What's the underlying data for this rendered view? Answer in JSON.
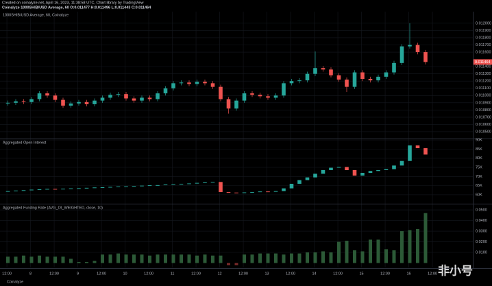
{
  "header": {
    "created": "Created on coinalyze.net, April 16, 2023, 11:38:58 UTC, Chart library by TradingView",
    "symbol_line": "Coinalyze 1000SHIB/USD Average, 60  O:0.011477 H:0.011496 L:0.011443 C:0.011464",
    "brand": "Coinalyze",
    "watermark": "非小号"
  },
  "chart_data": [
    {
      "type": "candlestick",
      "title": "1000SHIB/USD Average, 60, Coinalyze",
      "x": [
        4,
        8,
        12,
        16,
        20,
        24,
        28,
        32,
        36,
        40,
        44,
        48,
        52,
        56,
        60,
        64,
        68,
        72,
        76,
        80,
        84,
        88,
        92,
        96,
        100,
        104,
        108,
        112,
        116,
        120,
        124,
        128,
        132,
        136,
        140,
        144,
        148,
        152,
        156,
        160,
        164,
        168,
        172,
        176,
        180,
        184,
        188,
        192,
        196,
        200,
        204,
        208,
        212,
        216
      ],
      "open": [
        0.01089,
        0.0109,
        0.01092,
        0.01091,
        0.01095,
        0.01103,
        0.011,
        0.01094,
        0.01086,
        0.01089,
        0.01091,
        0.01088,
        0.01093,
        0.01097,
        0.01101,
        0.01102,
        0.01096,
        0.01093,
        0.01097,
        0.01095,
        0.01103,
        0.0111,
        0.01117,
        0.01118,
        0.01116,
        0.01119,
        0.01117,
        0.01112,
        0.01095,
        0.01082,
        0.01093,
        0.01103,
        0.01101,
        0.01099,
        0.01097,
        0.011,
        0.01117,
        0.0112,
        0.01121,
        0.0113,
        0.01138,
        0.01136,
        0.01128,
        0.01122,
        0.01112,
        0.01132,
        0.01123,
        0.01121,
        0.01126,
        0.01132,
        0.01145,
        0.01168,
        0.0117,
        0.0116
      ],
      "high": [
        0.01093,
        0.01095,
        0.01095,
        0.01098,
        0.01106,
        0.01106,
        0.01103,
        0.01097,
        0.01092,
        0.01094,
        0.01094,
        0.01096,
        0.011,
        0.01104,
        0.01105,
        0.01105,
        0.01099,
        0.011,
        0.011,
        0.01106,
        0.01113,
        0.0112,
        0.01121,
        0.01121,
        0.01122,
        0.01122,
        0.0112,
        0.01115,
        0.01098,
        0.01096,
        0.01106,
        0.01106,
        0.01104,
        0.01102,
        0.01103,
        0.0112,
        0.01123,
        0.01124,
        0.01133,
        0.01161,
        0.01141,
        0.01139,
        0.01131,
        0.01125,
        0.01135,
        0.01135,
        0.01126,
        0.01129,
        0.01135,
        0.01148,
        0.01171,
        0.012,
        0.01173,
        0.01163
      ],
      "low": [
        0.01086,
        0.01087,
        0.01088,
        0.01088,
        0.01092,
        0.01097,
        0.01091,
        0.01083,
        0.01083,
        0.01086,
        0.01085,
        0.01085,
        0.0109,
        0.01094,
        0.01098,
        0.01093,
        0.0109,
        0.0109,
        0.01092,
        0.01092,
        0.011,
        0.01107,
        0.01114,
        0.01113,
        0.01113,
        0.01114,
        0.01109,
        0.01092,
        0.01075,
        0.01079,
        0.0109,
        0.01098,
        0.01096,
        0.01094,
        0.01094,
        0.01097,
        0.01114,
        0.01117,
        0.01118,
        0.01127,
        0.01133,
        0.01125,
        0.01119,
        0.01105,
        0.01109,
        0.0112,
        0.01118,
        0.01118,
        0.01123,
        0.01129,
        0.01142,
        0.01165,
        0.01157,
        0.01143
      ],
      "close": [
        0.0109,
        0.01092,
        0.01091,
        0.01095,
        0.01103,
        0.011,
        0.01094,
        0.01086,
        0.01089,
        0.01091,
        0.01088,
        0.01093,
        0.01097,
        0.01101,
        0.01102,
        0.01096,
        0.01093,
        0.01097,
        0.01095,
        0.01103,
        0.0111,
        0.01117,
        0.01118,
        0.01116,
        0.01119,
        0.01117,
        0.01112,
        0.01095,
        0.01082,
        0.01093,
        0.01103,
        0.01101,
        0.01099,
        0.01097,
        0.011,
        0.01117,
        0.0112,
        0.01121,
        0.0113,
        0.01138,
        0.01136,
        0.01128,
        0.01122,
        0.01112,
        0.01132,
        0.01123,
        0.01121,
        0.01126,
        0.01132,
        0.01145,
        0.01168,
        0.0117,
        0.0116,
        0.011464
      ],
      "up_color": "#26a69a",
      "down_color": "#ef5350",
      "xlim": [
        0,
        240
      ],
      "ylim": [
        0.010405,
        0.01216
      ],
      "yticks": [
        {
          "value": 0.012,
          "label": "0.012000"
        },
        {
          "value": 0.0119,
          "label": "0.011900"
        },
        {
          "value": 0.0118,
          "label": "0.011800"
        },
        {
          "value": 0.0117,
          "label": "0.011700"
        },
        {
          "value": 0.0116,
          "label": "0.011600"
        },
        {
          "value": 0.0114,
          "label": "0.011400"
        },
        {
          "value": 0.0113,
          "label": "0.011300"
        },
        {
          "value": 0.0112,
          "label": "0.011200"
        },
        {
          "value": 0.0111,
          "label": "0.011100"
        },
        {
          "value": 0.011,
          "label": "0.011000"
        },
        {
          "value": 0.0109,
          "label": "0.010900"
        },
        {
          "value": 0.0108,
          "label": "0.010800"
        },
        {
          "value": 0.0107,
          "label": "0.010700"
        },
        {
          "value": 0.0106,
          "label": "0.010600"
        },
        {
          "value": 0.0105,
          "label": "0.010500"
        }
      ]
    },
    {
      "type": "step-candle",
      "title": "Aggregated Open Interest",
      "x": [
        4,
        8,
        12,
        16,
        20,
        24,
        28,
        32,
        36,
        40,
        44,
        48,
        52,
        56,
        60,
        64,
        68,
        72,
        76,
        80,
        84,
        88,
        92,
        96,
        100,
        104,
        108,
        112,
        116,
        120,
        124,
        128,
        132,
        136,
        140,
        144,
        148,
        152,
        156,
        160,
        164,
        168,
        172,
        176,
        180,
        184,
        188,
        192,
        196,
        200,
        204,
        208,
        212,
        216
      ],
      "values": [
        62000,
        62300,
        62500,
        62800,
        63000,
        63200,
        63000,
        63300,
        63500,
        63600,
        63800,
        64000,
        64100,
        64300,
        64500,
        64600,
        64800,
        65000,
        65200,
        65300,
        65600,
        65800,
        66000,
        66200,
        66500,
        66800,
        67000,
        61500,
        61200,
        61000,
        61300,
        61500,
        61800,
        61600,
        62000,
        63500,
        66000,
        68000,
        69500,
        71500,
        73500,
        74800,
        75200,
        73500,
        70500,
        72000,
        73000,
        73500,
        74000,
        76000,
        78500,
        87000,
        85500,
        82000
      ],
      "up_color": "#26a69a",
      "down_color": "#ef5350",
      "xlim": [
        0,
        240
      ],
      "ylim": [
        55100,
        90400
      ],
      "yticks": [
        {
          "value": 90000,
          "label": "90K"
        },
        {
          "value": 85000,
          "label": "85K"
        },
        {
          "value": 80000,
          "label": "80K"
        },
        {
          "value": 75000,
          "label": "75K"
        },
        {
          "value": 70000,
          "label": "70K"
        },
        {
          "value": 65000,
          "label": "65K"
        },
        {
          "value": 60000,
          "label": "60K"
        }
      ]
    },
    {
      "type": "bar",
      "title": "Aggregated Funding Rate (AVG_OI_WEIGHTED, close, 10)",
      "x": [
        4,
        8,
        12,
        16,
        20,
        24,
        28,
        32,
        36,
        40,
        44,
        48,
        52,
        56,
        60,
        64,
        68,
        72,
        76,
        80,
        84,
        88,
        92,
        96,
        100,
        104,
        108,
        112,
        116,
        120,
        124,
        128,
        132,
        136,
        140,
        144,
        148,
        152,
        156,
        160,
        164,
        168,
        172,
        176,
        180,
        184,
        188,
        192,
        196,
        200,
        204,
        208,
        212,
        216
      ],
      "values": [
        0.006,
        0.006,
        0.007,
        0.006,
        0.007,
        0.006,
        0.006,
        0.006,
        0.004,
        0.001,
        0.001,
        0.002,
        0.008,
        0.008,
        0.009,
        0.008,
        0.008,
        0.008,
        0.007,
        0.008,
        0.008,
        0.008,
        0.008,
        0.008,
        0.007,
        0.008,
        0.007,
        0.007,
        -0.002,
        -0.002,
        0.008,
        0.008,
        0.009,
        0.009,
        0.009,
        0.008,
        0.009,
        0.009,
        0.01,
        0.01,
        0.011,
        0.01,
        0.02,
        0.021,
        0.012,
        0.011,
        0.022,
        0.022,
        0.013,
        0.012,
        0.03,
        0.031,
        0.032,
        0.047
      ],
      "color": "#2c5a37",
      "negative_color": "#7a2a2a",
      "xlim": [
        0,
        240
      ],
      "ylim": [
        -0.0042,
        0.0552
      ],
      "yticks": [
        {
          "value": 0.05,
          "label": "0.0500"
        },
        {
          "value": 0.04,
          "label": "0.0400"
        },
        {
          "value": 0.03,
          "label": "0.0300"
        },
        {
          "value": 0.02,
          "label": "0.0200"
        },
        {
          "value": 0.01,
          "label": "0.0100"
        }
      ],
      "xticks": [
        {
          "value": 3.5,
          "label": "12:00"
        },
        {
          "value": 15.5,
          "label": "8"
        },
        {
          "value": 27.5,
          "label": "12:00"
        },
        {
          "value": 39.5,
          "label": "9"
        },
        {
          "value": 51.5,
          "label": "12:00"
        },
        {
          "value": 63.5,
          "label": "10"
        },
        {
          "value": 75.5,
          "label": "12:00"
        },
        {
          "value": 87.5,
          "label": "11"
        },
        {
          "value": 99.5,
          "label": "12:00"
        },
        {
          "value": 111.5,
          "label": "12"
        },
        {
          "value": 123.5,
          "label": "12:00"
        },
        {
          "value": 135.5,
          "label": "13"
        },
        {
          "value": 147.5,
          "label": "12:00"
        },
        {
          "value": 159.5,
          "label": "14"
        },
        {
          "value": 171.5,
          "label": "12:00"
        },
        {
          "value": 183.5,
          "label": "15"
        },
        {
          "value": 195.5,
          "label": "12:00"
        },
        {
          "value": 207.5,
          "label": "16"
        },
        {
          "value": 219.5,
          "label": "12:00"
        }
      ]
    }
  ]
}
